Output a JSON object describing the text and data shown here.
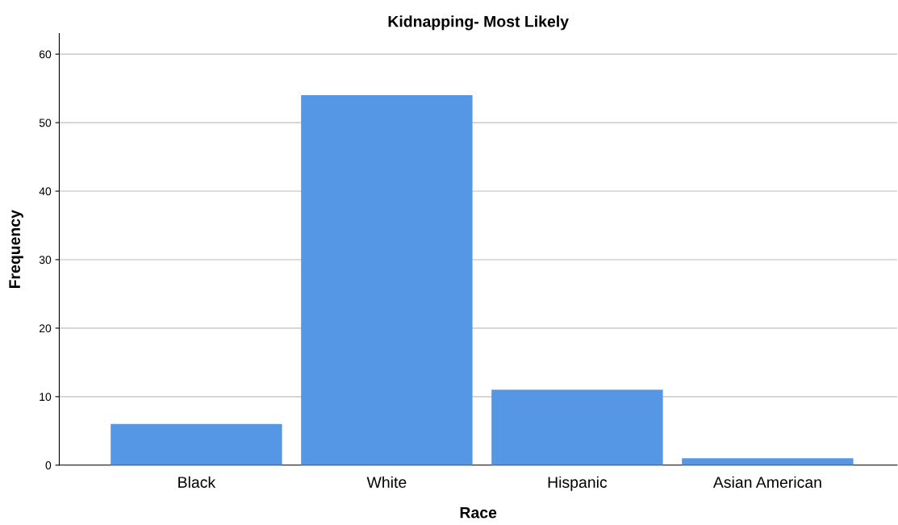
{
  "chart_data": {
    "type": "bar",
    "title": "Kidnapping- Most Likely",
    "xlabel": "Race",
    "ylabel": "Frequency",
    "categories": [
      "Black",
      "White",
      "Hispanic",
      "Asian American"
    ],
    "values": [
      6,
      54,
      11,
      1
    ],
    "color": "#5596e5",
    "ylim": [
      0,
      63
    ],
    "yticks": [
      0,
      10,
      20,
      30,
      40,
      50,
      60
    ],
    "grid": "y",
    "legend": false
  }
}
